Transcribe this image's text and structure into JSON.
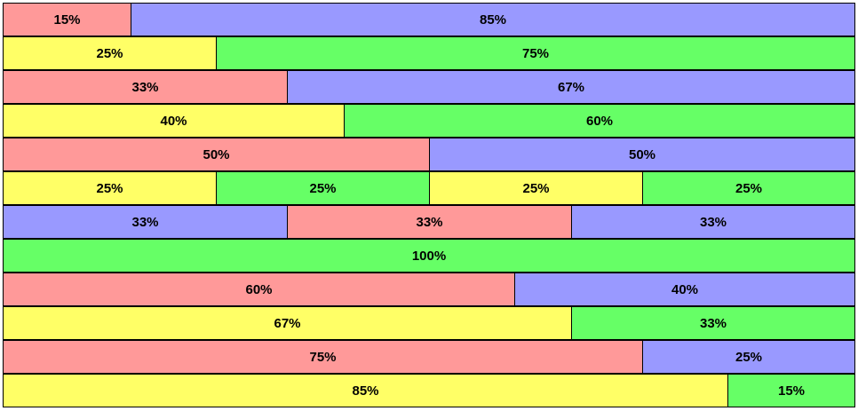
{
  "colors": {
    "red": "#ff9999",
    "blue": "#9999ff",
    "yellow": "#ffff66",
    "green": "#66ff66"
  },
  "rows": [
    {
      "cells": [
        {
          "label": "15%",
          "value": 15,
          "color": "red"
        },
        {
          "label": "85%",
          "value": 85,
          "color": "blue"
        }
      ]
    },
    {
      "cells": [
        {
          "label": "25%",
          "value": 25,
          "color": "yellow"
        },
        {
          "label": "75%",
          "value": 75,
          "color": "green"
        }
      ]
    },
    {
      "cells": [
        {
          "label": "33%",
          "value": 33.3333,
          "color": "red"
        },
        {
          "label": "67%",
          "value": 66.6667,
          "color": "blue"
        }
      ]
    },
    {
      "cells": [
        {
          "label": "40%",
          "value": 40,
          "color": "yellow"
        },
        {
          "label": "60%",
          "value": 60,
          "color": "green"
        }
      ]
    },
    {
      "cells": [
        {
          "label": "50%",
          "value": 50,
          "color": "red"
        },
        {
          "label": "50%",
          "value": 50,
          "color": "blue"
        }
      ]
    },
    {
      "cells": [
        {
          "label": "25%",
          "value": 25,
          "color": "yellow"
        },
        {
          "label": "25%",
          "value": 25,
          "color": "green"
        },
        {
          "label": "25%",
          "value": 25,
          "color": "yellow"
        },
        {
          "label": "25%",
          "value": 25,
          "color": "green"
        }
      ]
    },
    {
      "cells": [
        {
          "label": "33%",
          "value": 33.3333,
          "color": "blue"
        },
        {
          "label": "33%",
          "value": 33.3333,
          "color": "red"
        },
        {
          "label": "33%",
          "value": 33.3333,
          "color": "blue"
        }
      ]
    },
    {
      "cells": [
        {
          "label": "100%",
          "value": 100,
          "color": "green"
        }
      ]
    },
    {
      "cells": [
        {
          "label": "60%",
          "value": 60,
          "color": "red"
        },
        {
          "label": "40%",
          "value": 40,
          "color": "blue"
        }
      ]
    },
    {
      "cells": [
        {
          "label": "67%",
          "value": 66.6667,
          "color": "yellow"
        },
        {
          "label": "33%",
          "value": 33.3333,
          "color": "green"
        }
      ]
    },
    {
      "cells": [
        {
          "label": "75%",
          "value": 75,
          "color": "red"
        },
        {
          "label": "25%",
          "value": 25,
          "color": "blue"
        }
      ]
    },
    {
      "cells": [
        {
          "label": "85%",
          "value": 85,
          "color": "yellow"
        },
        {
          "label": "15%",
          "value": 15,
          "color": "green"
        }
      ]
    }
  ]
}
